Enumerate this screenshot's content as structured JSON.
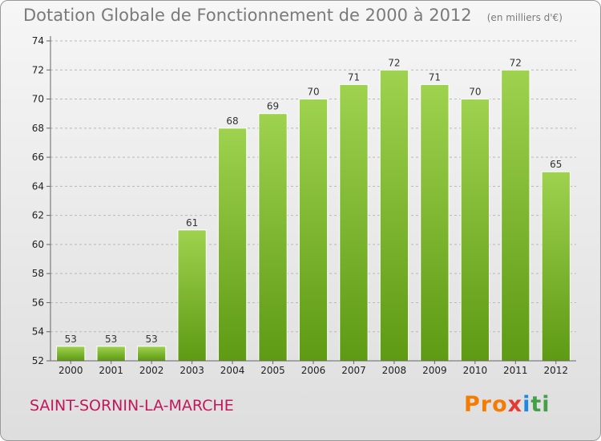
{
  "title": "Dotation Globale de Fonctionnement de 2000 à 2012",
  "subtitle": "(en milliers d'€)",
  "commune": "SAINT-SORNIN-LA-MARCHE",
  "logo_text": "Proxiti",
  "colors": {
    "bar_light": "#9ed24f",
    "bar_dark": "#5e9a14",
    "grid": "#b8b8b8",
    "commune": "#c2185b"
  },
  "chart_data": {
    "type": "bar",
    "title": "Dotation Globale de Fonctionnement de 2000 à 2012",
    "subtitle": "(en milliers d'€)",
    "xlabel": "",
    "ylabel": "",
    "categories": [
      "2000",
      "2001",
      "2002",
      "2003",
      "2004",
      "2005",
      "2006",
      "2007",
      "2008",
      "2009",
      "2010",
      "2011",
      "2012"
    ],
    "values": [
      53,
      53,
      53,
      61,
      68,
      69,
      70,
      71,
      72,
      71,
      70,
      72,
      65
    ],
    "ylim": [
      52,
      74
    ],
    "yticks": [
      52,
      54,
      56,
      58,
      60,
      62,
      64,
      66,
      68,
      70,
      72,
      74
    ],
    "grid": true,
    "legend": "none"
  }
}
